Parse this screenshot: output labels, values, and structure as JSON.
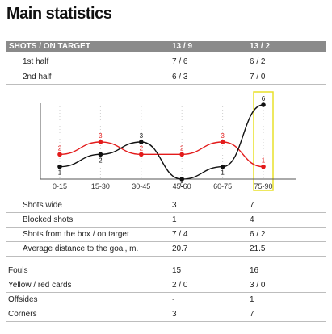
{
  "title": "Main statistics",
  "header": {
    "label": "SHOTS / ON TARGET",
    "team1": "13 / 9",
    "team2": "13 / 2"
  },
  "halves": [
    {
      "label": "1st half",
      "team1": "7 / 6",
      "team2": "6 / 2"
    },
    {
      "label": "2nd half",
      "team1": "6 / 3",
      "team2": "7 / 0"
    }
  ],
  "chart_data": {
    "type": "line",
    "categories": [
      "0-15",
      "15-30",
      "30-45",
      "45-60",
      "60-75",
      "75-90"
    ],
    "series": [
      {
        "values": [
          2,
          3,
          2,
          2,
          3,
          1
        ],
        "color": "#e31b1b"
      },
      {
        "values": [
          1,
          2,
          3,
          0,
          1,
          6
        ],
        "color": "#111111"
      }
    ],
    "ylim": [
      0,
      6
    ],
    "highlight_category": "75-90",
    "highlight_color": "#e9e02a",
    "grid": false
  },
  "shot_details": [
    {
      "label": "Shots wide",
      "team1": "3",
      "team2": "7"
    },
    {
      "label": "Blocked shots",
      "team1": "1",
      "team2": "4"
    },
    {
      "label": "Shots from the box / on target",
      "team1": "7 / 4",
      "team2": "6 / 2"
    },
    {
      "label": "Average distance to the goal, m.",
      "team1": "20.7",
      "team2": "21.5"
    }
  ],
  "misc": [
    {
      "label": "Fouls",
      "team1": "15",
      "team2": "16"
    },
    {
      "label": "Yellow / red cards",
      "team1": "2 / 0",
      "team2": "3 / 0"
    },
    {
      "label": "Offsides",
      "team1": "-",
      "team2": "1"
    },
    {
      "label": "Corners",
      "team1": "3",
      "team2": "7"
    }
  ]
}
